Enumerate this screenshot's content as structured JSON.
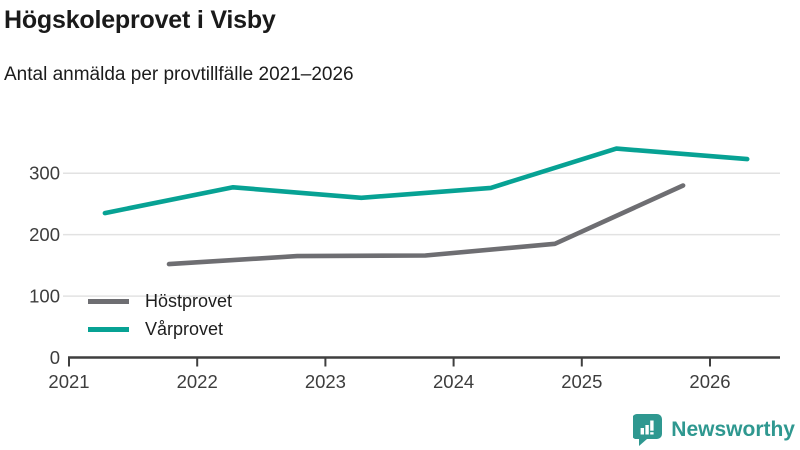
{
  "chart_data": {
    "type": "line",
    "title": "Högskoleprovet i Visby",
    "subtitle": "Antal anmälda per provtillfälle 2021–2026",
    "x_ticks": [
      2021,
      2022,
      2023,
      2024,
      2025,
      2026
    ],
    "y_ticks": [
      0,
      100,
      200,
      300
    ],
    "xlim": [
      2021,
      2026.55
    ],
    "ylim": [
      0,
      365
    ],
    "grid": "horizontal",
    "legend_position": "inside-bottom-left",
    "axis_color": "#3f3f3f",
    "grid_color": "#e2e2e2",
    "label_color": "#3d3d3d",
    "series": [
      {
        "name": "Höstprovet",
        "color": "#6e6e72",
        "points": [
          [
            2021.78,
            152
          ],
          [
            2022.78,
            165
          ],
          [
            2023.78,
            166
          ],
          [
            2024.79,
            185
          ],
          [
            2025.79,
            280
          ]
        ]
      },
      {
        "name": "Vårprovet",
        "color": "#07a294",
        "points": [
          [
            2021.28,
            235
          ],
          [
            2022.28,
            277
          ],
          [
            2023.28,
            260
          ],
          [
            2024.29,
            276
          ],
          [
            2025.27,
            340
          ],
          [
            2026.29,
            323
          ]
        ]
      }
    ]
  },
  "branding": {
    "logo_text": "Newsworthy",
    "brand_color": "#2f9890"
  }
}
